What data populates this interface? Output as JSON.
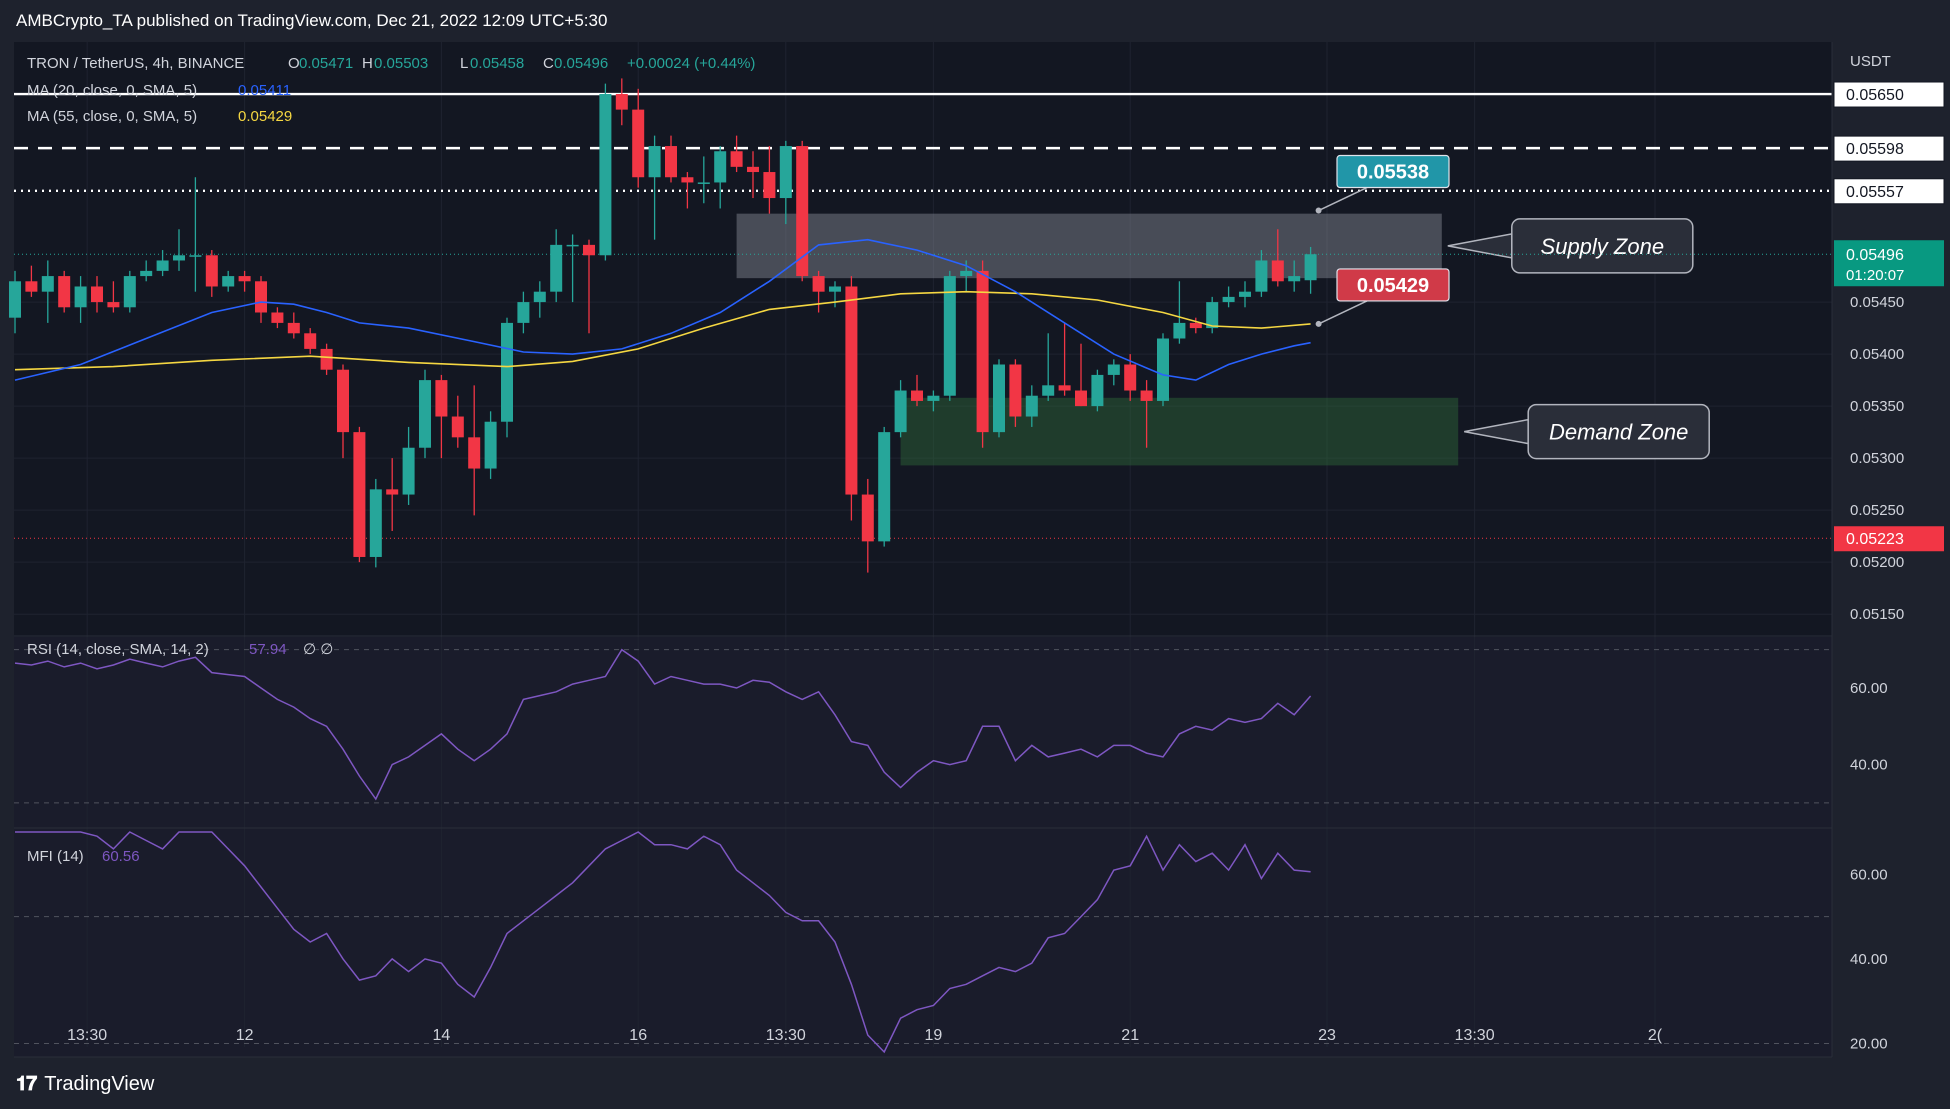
{
  "header": {
    "publish_line": "AMBCrypto_TA published on TradingView.com, Dec 21, 2022 12:09 UTC+5:30"
  },
  "footer": {
    "brand": "TradingView"
  },
  "legend": {
    "symbol": "TRON / TetherUS, 4h, BINANCE",
    "o_label": "O",
    "o_value": "0.05471",
    "h_label": "H",
    "h_value": "0.05503",
    "l_label": "L",
    "l_value": "0.05458",
    "c_label": "C",
    "c_value": "0.05496",
    "change": "+0.00024 (+0.44%)",
    "ma20_label": "MA (20, close, 0, SMA, 5)",
    "ma20_value": "0.05411",
    "ma55_label": "MA (55, close, 0, SMA, 5)",
    "ma55_value": "0.05429",
    "rsi_label": "RSI (14, close, SMA, 14, 2)",
    "rsi_value": "57.94",
    "rsi_extra": "∅  ∅",
    "mfi_label": "MFI (14)",
    "mfi_value": "60.56"
  },
  "colors": {
    "background": "#131722",
    "up": "#26a69a",
    "down": "#f23645",
    "ma20": "#2962ff",
    "ma55": "#f5d742",
    "osc": "#7e57c2",
    "price_tag_current": "#089981",
    "price_tag_low": "#f23645",
    "callout_top": "#2196a8",
    "callout_bottom": "#d03a48"
  },
  "chart_data": {
    "type": "candlestick",
    "currency_label": "USDT",
    "price_axis_ticks": [
      "0.05450",
      "0.05400",
      "0.05350",
      "0.05300",
      "0.05250",
      "0.05200",
      "0.05150"
    ],
    "price_range": [
      0.0513,
      0.057
    ],
    "time_axis_labels": [
      {
        "label": "13:30",
        "i": 4.4
      },
      {
        "label": "12",
        "i": 14
      },
      {
        "label": "14",
        "i": 26
      },
      {
        "label": "16",
        "i": 38
      },
      {
        "label": "13:30",
        "i": 47
      },
      {
        "label": "19",
        "i": 56
      },
      {
        "label": "21",
        "i": 68
      },
      {
        "label": "23",
        "i": 80
      },
      {
        "label": "13:30",
        "i": 89
      },
      {
        "label": "2(",
        "i": 100
      }
    ],
    "ohlc": [
      [
        0.05435,
        0.0548,
        0.0542,
        0.0547
      ],
      [
        0.0547,
        0.05485,
        0.05455,
        0.0546
      ],
      [
        0.0546,
        0.0549,
        0.0543,
        0.05475
      ],
      [
        0.05475,
        0.0548,
        0.0544,
        0.05445
      ],
      [
        0.05445,
        0.05475,
        0.0543,
        0.05465
      ],
      [
        0.05465,
        0.05475,
        0.0544,
        0.0545
      ],
      [
        0.0545,
        0.0547,
        0.0544,
        0.05445
      ],
      [
        0.05445,
        0.0548,
        0.0544,
        0.05475
      ],
      [
        0.05475,
        0.0549,
        0.0547,
        0.0548
      ],
      [
        0.0548,
        0.055,
        0.05475,
        0.0549
      ],
      [
        0.0549,
        0.0552,
        0.0548,
        0.05495
      ],
      [
        0.05495,
        0.0557,
        0.0546,
        0.05495
      ],
      [
        0.05495,
        0.055,
        0.05455,
        0.05465
      ],
      [
        0.05465,
        0.0548,
        0.0546,
        0.05475
      ],
      [
        0.05475,
        0.0548,
        0.0546,
        0.0547
      ],
      [
        0.0547,
        0.05475,
        0.0543,
        0.0544
      ],
      [
        0.0544,
        0.05445,
        0.05425,
        0.0543
      ],
      [
        0.0543,
        0.0544,
        0.05415,
        0.0542
      ],
      [
        0.0542,
        0.05425,
        0.054,
        0.05405
      ],
      [
        0.05405,
        0.0541,
        0.0538,
        0.05385
      ],
      [
        0.05385,
        0.0539,
        0.053,
        0.05325
      ],
      [
        0.05325,
        0.0533,
        0.052,
        0.05205
      ],
      [
        0.05205,
        0.0528,
        0.05195,
        0.0527
      ],
      [
        0.0527,
        0.053,
        0.0523,
        0.05265
      ],
      [
        0.05265,
        0.0533,
        0.05255,
        0.0531
      ],
      [
        0.0531,
        0.05385,
        0.053,
        0.05375
      ],
      [
        0.05375,
        0.0538,
        0.053,
        0.0534
      ],
      [
        0.0534,
        0.0536,
        0.0531,
        0.0532
      ],
      [
        0.0532,
        0.0537,
        0.05245,
        0.0529
      ],
      [
        0.0529,
        0.05345,
        0.0528,
        0.05335
      ],
      [
        0.05335,
        0.05435,
        0.0532,
        0.0543
      ],
      [
        0.0543,
        0.0546,
        0.0542,
        0.0545
      ],
      [
        0.0545,
        0.0547,
        0.05435,
        0.0546
      ],
      [
        0.0546,
        0.0552,
        0.0545,
        0.05505
      ],
      [
        0.05505,
        0.05515,
        0.0545,
        0.05505
      ],
      [
        0.05505,
        0.0551,
        0.0542,
        0.05495
      ],
      [
        0.05495,
        0.0566,
        0.0549,
        0.0565
      ],
      [
        0.0565,
        0.05665,
        0.0562,
        0.05635
      ],
      [
        0.05635,
        0.05655,
        0.0556,
        0.0557
      ],
      [
        0.0557,
        0.0561,
        0.0551,
        0.056
      ],
      [
        0.056,
        0.0561,
        0.05565,
        0.0557
      ],
      [
        0.0557,
        0.05575,
        0.0554,
        0.05565
      ],
      [
        0.05565,
        0.0559,
        0.05545,
        0.05565
      ],
      [
        0.05565,
        0.056,
        0.0554,
        0.05595
      ],
      [
        0.05595,
        0.0561,
        0.05575,
        0.0558
      ],
      [
        0.0558,
        0.05595,
        0.0555,
        0.05575
      ],
      [
        0.05575,
        0.056,
        0.05535,
        0.0555
      ],
      [
        0.0555,
        0.05605,
        0.05525,
        0.056
      ],
      [
        0.056,
        0.05605,
        0.0547,
        0.05475
      ],
      [
        0.05475,
        0.0548,
        0.0544,
        0.0546
      ],
      [
        0.0546,
        0.0547,
        0.05445,
        0.05465
      ],
      [
        0.05465,
        0.05475,
        0.0524,
        0.05265
      ],
      [
        0.05265,
        0.0528,
        0.0519,
        0.0522
      ],
      [
        0.0522,
        0.0533,
        0.05215,
        0.05325
      ],
      [
        0.05325,
        0.05375,
        0.0532,
        0.05365
      ],
      [
        0.05365,
        0.0538,
        0.0535,
        0.05355
      ],
      [
        0.05355,
        0.05365,
        0.05345,
        0.0536
      ],
      [
        0.0536,
        0.0548,
        0.05355,
        0.05475
      ],
      [
        0.05475,
        0.0549,
        0.0546,
        0.0548
      ],
      [
        0.0548,
        0.0549,
        0.0531,
        0.05325
      ],
      [
        0.05325,
        0.05395,
        0.0532,
        0.0539
      ],
      [
        0.0539,
        0.05395,
        0.0533,
        0.0534
      ],
      [
        0.0534,
        0.0537,
        0.0533,
        0.0536
      ],
      [
        0.0536,
        0.0542,
        0.05355,
        0.0537
      ],
      [
        0.0537,
        0.0543,
        0.0536,
        0.05365
      ],
      [
        0.05365,
        0.0541,
        0.0535,
        0.0535
      ],
      [
        0.0535,
        0.05385,
        0.05345,
        0.0538
      ],
      [
        0.0538,
        0.05395,
        0.0537,
        0.0539
      ],
      [
        0.0539,
        0.054,
        0.05355,
        0.05365
      ],
      [
        0.05365,
        0.05375,
        0.0531,
        0.05355
      ],
      [
        0.05355,
        0.0542,
        0.0535,
        0.05415
      ],
      [
        0.05415,
        0.0547,
        0.0541,
        0.0543
      ],
      [
        0.0543,
        0.05435,
        0.0542,
        0.05425
      ],
      [
        0.05425,
        0.05455,
        0.0542,
        0.0545
      ],
      [
        0.0545,
        0.05465,
        0.05445,
        0.05455
      ],
      [
        0.05455,
        0.0547,
        0.05445,
        0.0546
      ],
      [
        0.0546,
        0.055,
        0.05455,
        0.0549
      ],
      [
        0.0549,
        0.0552,
        0.05465,
        0.0547
      ],
      [
        0.0547,
        0.0549,
        0.0546,
        0.05475
      ],
      [
        0.05471,
        0.05503,
        0.05458,
        0.05496
      ]
    ],
    "ma20": [
      [
        0,
        0.05375
      ],
      [
        4,
        0.0539
      ],
      [
        8,
        0.05415
      ],
      [
        12,
        0.0544
      ],
      [
        15,
        0.0545
      ],
      [
        17,
        0.05448
      ],
      [
        19,
        0.0544
      ],
      [
        21,
        0.0543
      ],
      [
        24,
        0.05425
      ],
      [
        28,
        0.05412
      ],
      [
        31,
        0.05402
      ],
      [
        34,
        0.054
      ],
      [
        37,
        0.05405
      ],
      [
        40,
        0.0542
      ],
      [
        43,
        0.0544
      ],
      [
        46,
        0.0547
      ],
      [
        49,
        0.05505
      ],
      [
        52,
        0.0551
      ],
      [
        55,
        0.055
      ],
      [
        58,
        0.05485
      ],
      [
        61,
        0.0546
      ],
      [
        64,
        0.0543
      ],
      [
        67,
        0.054
      ],
      [
        70,
        0.0538
      ],
      [
        72,
        0.05375
      ],
      [
        74,
        0.0539
      ],
      [
        76,
        0.054
      ],
      [
        78,
        0.05408
      ],
      [
        79,
        0.05411
      ]
    ],
    "ma55": [
      [
        0,
        0.05385
      ],
      [
        6,
        0.05388
      ],
      [
        12,
        0.05394
      ],
      [
        18,
        0.05398
      ],
      [
        24,
        0.05392
      ],
      [
        30,
        0.05388
      ],
      [
        34,
        0.05393
      ],
      [
        38,
        0.05405
      ],
      [
        42,
        0.05425
      ],
      [
        46,
        0.05443
      ],
      [
        50,
        0.0545
      ],
      [
        54,
        0.05458
      ],
      [
        58,
        0.0546
      ],
      [
        62,
        0.05458
      ],
      [
        66,
        0.05452
      ],
      [
        70,
        0.0544
      ],
      [
        73,
        0.05427
      ],
      [
        76,
        0.05425
      ],
      [
        79,
        0.05429
      ]
    ],
    "horizontal_levels": [
      {
        "price": 0.0565,
        "label": "0.05650",
        "style": "solid"
      },
      {
        "price": 0.05598,
        "label": "0.05598",
        "style": "dashed"
      },
      {
        "price": 0.05557,
        "label": "0.05557",
        "style": "dotted"
      }
    ],
    "current_price": {
      "price": 0.05496,
      "label": "0.05496",
      "countdown": "01:20:07"
    },
    "low_line": {
      "price": 0.05223,
      "label": "0.05223"
    },
    "zones": [
      {
        "name": "Supply Zone",
        "label": "Supply Zone",
        "price_top": 0.05535,
        "price_bottom": 0.05473,
        "i_start": 44,
        "i_end": 87,
        "color": "#8a8f99"
      },
      {
        "name": "Demand Zone",
        "label": "Demand Zone",
        "price_top": 0.05358,
        "price_bottom": 0.05293,
        "i_start": 54,
        "i_end": 88,
        "color": "#2e6b3a"
      }
    ],
    "callouts": [
      {
        "label": "0.05538",
        "i": 79,
        "price": 0.05538,
        "color": "#2196a8"
      },
      {
        "label": "0.05429",
        "i": 79,
        "price": 0.05429,
        "color": "#d03a48"
      }
    ],
    "rsi": {
      "range": [
        25,
        72
      ],
      "ticks": [
        "60.00",
        "40.00"
      ],
      "bands": [
        70,
        30
      ],
      "values": [
        66.5,
        66,
        67,
        65.5,
        66.5,
        65,
        66,
        67.5,
        66.5,
        65.5,
        67,
        68,
        64,
        63.5,
        63,
        60,
        57,
        55,
        52,
        50,
        44,
        37,
        31,
        40,
        42,
        45,
        48,
        44,
        41,
        44,
        48,
        57,
        58,
        59,
        61,
        62,
        63,
        70,
        67,
        61,
        63,
        62,
        61,
        61,
        60,
        62,
        61.5,
        59,
        57,
        59,
        53,
        46,
        45,
        38,
        34,
        38,
        41,
        40,
        41,
        50,
        50,
        41,
        45,
        42,
        43,
        44,
        42,
        45,
        45,
        43,
        42,
        48,
        50,
        49,
        52,
        51,
        52,
        56,
        53,
        57.9
      ]
    },
    "mfi": {
      "range": [
        18,
        70
      ],
      "ticks": [
        "60.00",
        "40.00",
        "20.00"
      ],
      "bands": [
        80,
        50,
        20
      ],
      "values": [
        76,
        78,
        73,
        71,
        70,
        69,
        66,
        71,
        68,
        66,
        72,
        75,
        70,
        66,
        62,
        57,
        52,
        47,
        44,
        46,
        40,
        35,
        36,
        40,
        37,
        40,
        39,
        34,
        31,
        38,
        46,
        49,
        52,
        55,
        58,
        62,
        66,
        68,
        70,
        67,
        67,
        66,
        69,
        67,
        61,
        58,
        55,
        51,
        49,
        49,
        44,
        34,
        22,
        18,
        26,
        28,
        29,
        33,
        34,
        36,
        38,
        37,
        39,
        45,
        46,
        50,
        54,
        61,
        62,
        69,
        61,
        67,
        63,
        65,
        61,
        67,
        59,
        65,
        61,
        60.6
      ]
    }
  }
}
